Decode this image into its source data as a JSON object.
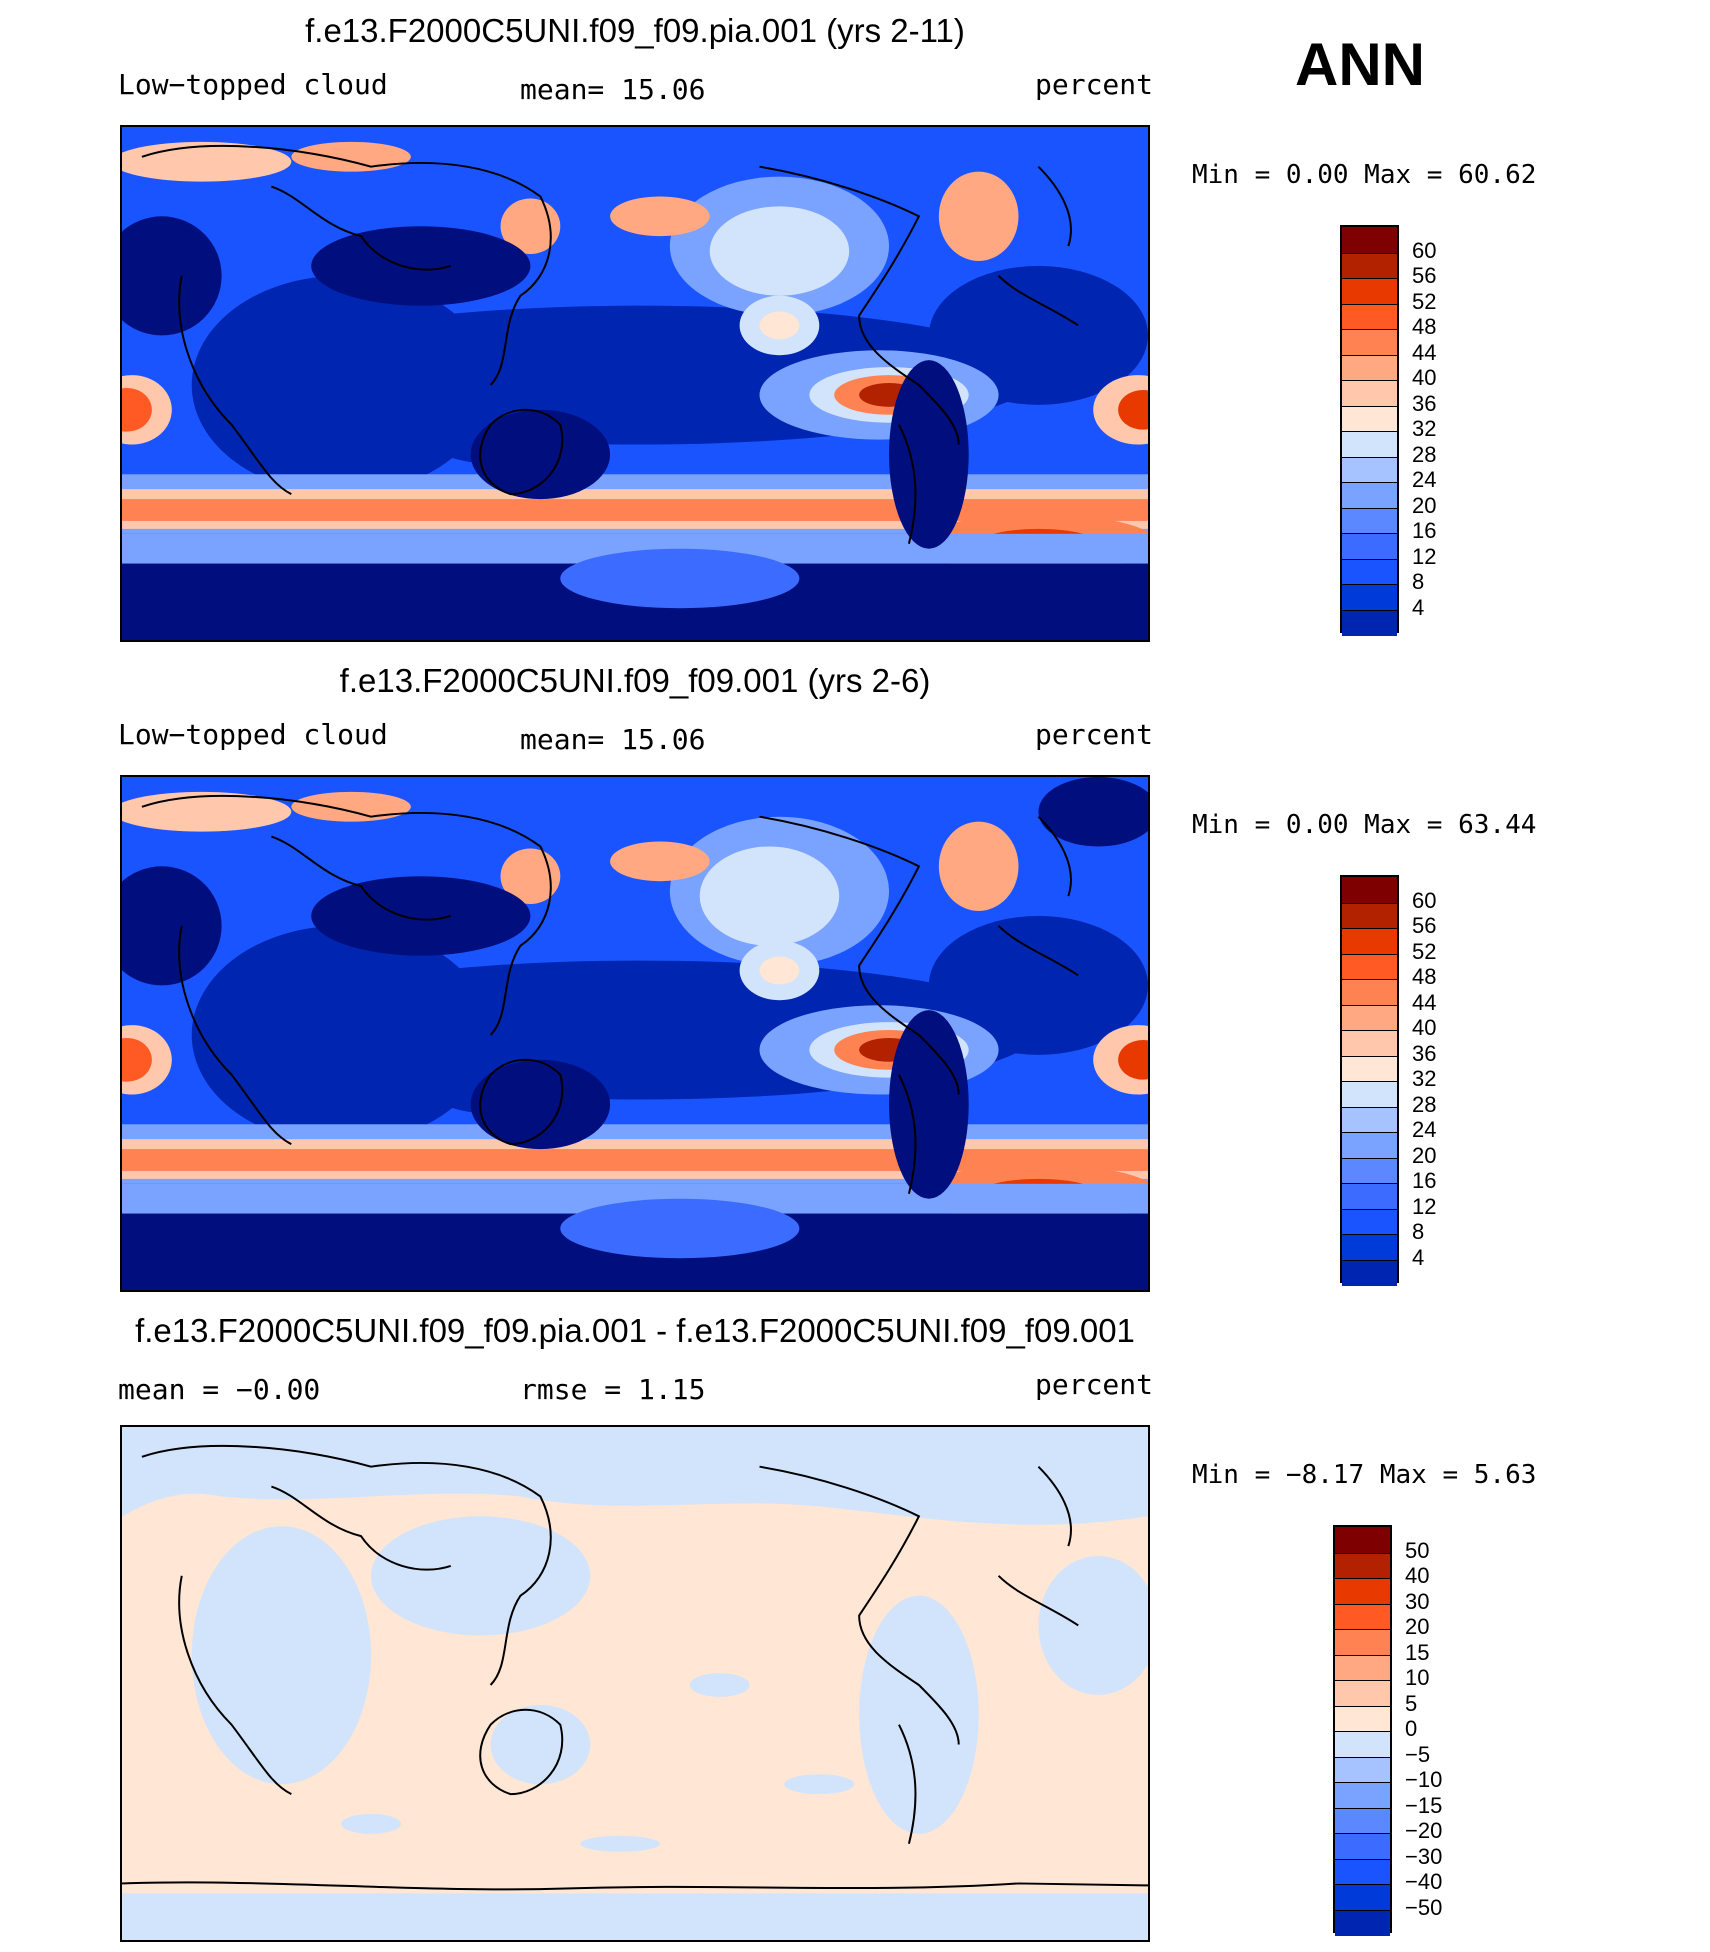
{
  "season": "ANN",
  "colors": {
    "levels_main": [
      "#000e7e",
      "#0025b0",
      "#003ad9",
      "#1a54ff",
      "#3b6cff",
      "#5c88ff",
      "#7aa2ff",
      "#a7c3ff",
      "#d2e4fb",
      "#ffe6d5",
      "#ffc8ad",
      "#ffa882",
      "#ff8253",
      "#ff5a24",
      "#e83a00",
      "#b32200",
      "#7e0000"
    ],
    "levels_diff": [
      "#000e7e",
      "#0025b0",
      "#003ad9",
      "#1a54ff",
      "#3b6cff",
      "#5c88ff",
      "#7aa2ff",
      "#a7c3ff",
      "#d2e4fb",
      "#ffe6d5",
      "#ffc8ad",
      "#ffa882",
      "#ff8253",
      "#ff5a24",
      "#e83a00",
      "#b32200",
      "#7e0000"
    ],
    "land_outline": "#000000"
  },
  "panels": [
    {
      "title": "f.e13.F2000C5UNI.f09_f09.pia.001 (yrs 2-11)",
      "left_label": "Low−topped cloud",
      "mid_label": "mean=   15.06",
      "right_label": "percent",
      "min_max": "Min =     0.00 Max =   60.62",
      "colorbar_labels": [
        "60",
        "56",
        "52",
        "48",
        "44",
        "40",
        "36",
        "32",
        "28",
        "24",
        "20",
        "16",
        "12",
        "8",
        "4"
      ],
      "map_kind": "main"
    },
    {
      "title": "f.e13.F2000C5UNI.f09_f09.001 (yrs 2-6)",
      "left_label": "Low−topped cloud",
      "mid_label": "mean=   15.06",
      "right_label": "percent",
      "min_max": "Min =     0.00 Max =   63.44",
      "colorbar_labels": [
        "60",
        "56",
        "52",
        "48",
        "44",
        "40",
        "36",
        "32",
        "28",
        "24",
        "20",
        "16",
        "12",
        "8",
        "4"
      ],
      "map_kind": "main"
    },
    {
      "title": "f.e13.F2000C5UNI.f09_f09.pia.001 - f.e13.F2000C5UNI.f09_f09.001",
      "left_label": "mean =   −0.00",
      "mid_label": "rmse =     1.15",
      "right_label": "percent",
      "min_max": "Min =   −8.17 Max =    5.63",
      "colorbar_labels": [
        "50",
        "40",
        "30",
        "20",
        "15",
        "10",
        "5",
        "0",
        "−5",
        "−10",
        "−15",
        "−20",
        "−30",
        "−40",
        "−50"
      ],
      "map_kind": "diff"
    }
  ]
}
